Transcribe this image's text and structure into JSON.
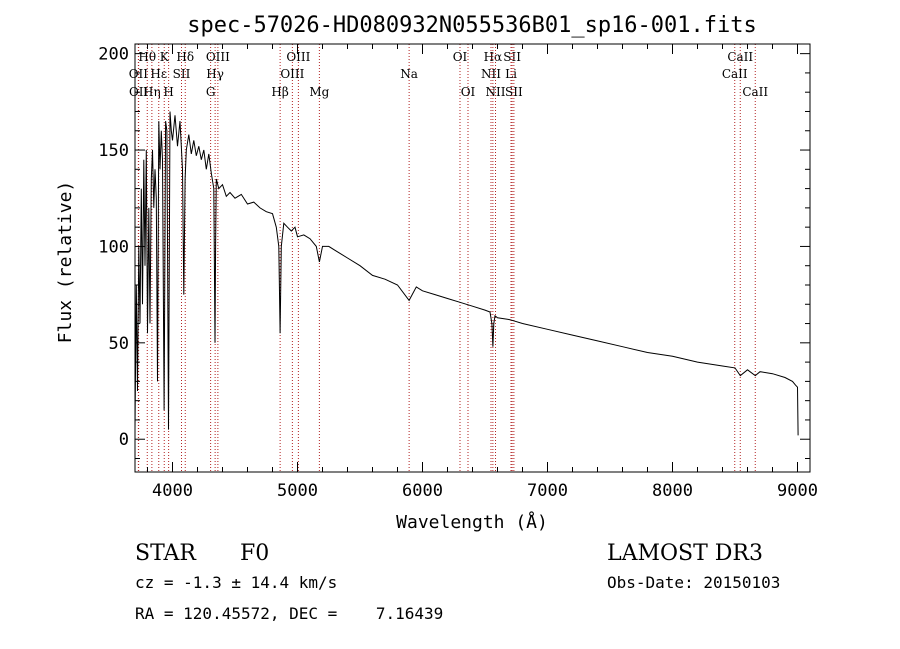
{
  "chart_data": {
    "type": "line",
    "title": "spec-57026-HD080932N055536B01_sp16-001.fits",
    "xlabel": "Wavelength (Å)",
    "ylabel": "Flux (relative)",
    "xlim": [
      3700,
      9100
    ],
    "ylim": [
      -17,
      205
    ],
    "x_ticks": [
      4000,
      5000,
      6000,
      7000,
      8000,
      9000
    ],
    "x_tick_labels": [
      "4000",
      "5000",
      "6000",
      "7000",
      "8000",
      "9000"
    ],
    "y_ticks": [
      0,
      50,
      100,
      150,
      200
    ],
    "y_tick_labels": [
      "0",
      "50",
      "100",
      "150",
      "200"
    ],
    "spectrum": {
      "x": [
        3700,
        3705,
        3710,
        3720,
        3730,
        3740,
        3750,
        3760,
        3770,
        3780,
        3790,
        3800,
        3810,
        3820,
        3830,
        3840,
        3850,
        3860,
        3870,
        3880,
        3890,
        3900,
        3910,
        3920,
        3933,
        3945,
        3955,
        3968,
        3980,
        3990,
        4000,
        4020,
        4040,
        4060,
        4080,
        4090,
        4101,
        4110,
        4130,
        4150,
        4170,
        4190,
        4210,
        4230,
        4250,
        4270,
        4290,
        4310,
        4330,
        4340,
        4345,
        4350,
        4370,
        4400,
        4430,
        4460,
        4500,
        4550,
        4600,
        4650,
        4700,
        4750,
        4800,
        4830,
        4850,
        4861,
        4870,
        4890,
        4920,
        4950,
        4980,
        5000,
        5050,
        5100,
        5150,
        5175,
        5200,
        5250,
        5300,
        5400,
        5500,
        5600,
        5700,
        5800,
        5893,
        5950,
        6000,
        6100,
        6200,
        6300,
        6400,
        6500,
        6540,
        6555,
        6563,
        6570,
        6580,
        6600,
        6700,
        6800,
        7000,
        7200,
        7400,
        7600,
        7800,
        8000,
        8200,
        8400,
        8500,
        8542,
        8600,
        8662,
        8700,
        8800,
        8900,
        8960,
        8985,
        9000,
        9005
      ],
      "flux": [
        5,
        40,
        80,
        25,
        100,
        60,
        130,
        70,
        145,
        90,
        150,
        55,
        120,
        60,
        135,
        150,
        120,
        140,
        125,
        30,
        165,
        140,
        160,
        145,
        15,
        165,
        160,
        5,
        170,
        160,
        155,
        168,
        152,
        165,
        140,
        75,
        135,
        150,
        158,
        148,
        155,
        147,
        152,
        145,
        150,
        140,
        148,
        138,
        130,
        50,
        100,
        135,
        130,
        132,
        126,
        128,
        125,
        127,
        122,
        123,
        120,
        118,
        117,
        110,
        100,
        55,
        100,
        112,
        110,
        108,
        110,
        105,
        106,
        104,
        100,
        92,
        100,
        100,
        98,
        94,
        90,
        85,
        83,
        80,
        72,
        79,
        77,
        75,
        73,
        71,
        69,
        67,
        66,
        60,
        48,
        60,
        64,
        63,
        62,
        60,
        57,
        54,
        51,
        48,
        45,
        43,
        40,
        38,
        37,
        33,
        36,
        33,
        35,
        34,
        32,
        30,
        28,
        27,
        2,
        1
      ]
    },
    "lines": [
      {
        "label": "Hθ",
        "wave": 3798,
        "row": 1
      },
      {
        "label": "OII",
        "wave": 3727,
        "row": 2
      },
      {
        "label": "OII",
        "wave": 3729,
        "row": 3
      },
      {
        "label": "Hη",
        "wave": 3835,
        "row": 3
      },
      {
        "label": "K",
        "wave": 3934,
        "row": 1
      },
      {
        "label": "H",
        "wave": 3969,
        "row": 3
      },
      {
        "label": "Hε",
        "wave": 3890,
        "row": 2
      },
      {
        "label": "SII",
        "wave": 4072,
        "row": 2
      },
      {
        "label": "Hδ",
        "wave": 4102,
        "row": 1
      },
      {
        "label": "OIII",
        "wave": 4363,
        "row": 1
      },
      {
        "label": "Hγ",
        "wave": 4341,
        "row": 2
      },
      {
        "label": "G",
        "wave": 4305,
        "row": 3
      },
      {
        "label": "Hβ",
        "wave": 4861,
        "row": 3
      },
      {
        "label": "OIII",
        "wave": 5007,
        "row": 1
      },
      {
        "label": "OIII",
        "wave": 4959,
        "row": 2
      },
      {
        "label": "Mg",
        "wave": 5175,
        "row": 3
      },
      {
        "label": "Na",
        "wave": 5893,
        "row": 2
      },
      {
        "label": "OI",
        "wave": 6300,
        "row": 1
      },
      {
        "label": "OI",
        "wave": 6364,
        "row": 3
      },
      {
        "label": "Hα",
        "wave": 6563,
        "row": 1
      },
      {
        "label": "NII",
        "wave": 6548,
        "row": 2
      },
      {
        "label": "NII",
        "wave": 6584,
        "row": 3
      },
      {
        "label": "SII",
        "wave": 6717,
        "row": 1
      },
      {
        "label": "Li",
        "wave": 6708,
        "row": 2
      },
      {
        "label": "SII",
        "wave": 6731,
        "row": 3
      },
      {
        "label": "CaII",
        "wave": 8542,
        "row": 1
      },
      {
        "label": "CaII",
        "wave": 8498,
        "row": 2
      },
      {
        "label": "CaII",
        "wave": 8662,
        "row": 3
      }
    ]
  },
  "info": {
    "class_label": "STAR",
    "subclass": "F0",
    "survey": "LAMOST DR3",
    "cz": "cz = -1.3 ± 14.4 km/s",
    "obs_date": "Obs-Date: 20150103",
    "coords": "RA = 120.45572, DEC =    7.16439"
  },
  "colors": {
    "spectrum": "#000000",
    "line_markers": "#b22222",
    "axes": "#000000"
  }
}
